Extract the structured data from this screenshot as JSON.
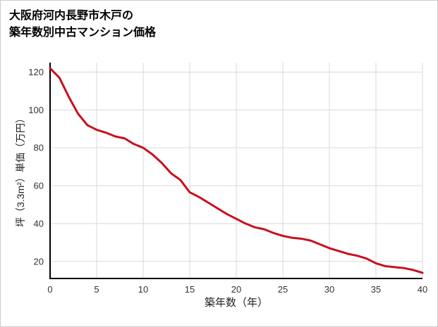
{
  "page": {
    "background": "#ffffff",
    "border_color": "#cccccc"
  },
  "chart_data": {
    "type": "line",
    "title": "大阪府河内長野市木戸の築年数別中古マンション価格",
    "title_lines": [
      "大阪府河内長野市木戸の",
      "築年数別中古マンション価格"
    ],
    "xlabel": "築年数（年）",
    "ylabel": "坪（3.3m²）単価（万円）",
    "x": [
      0,
      1,
      2,
      3,
      4,
      5,
      6,
      7,
      8,
      9,
      10,
      11,
      12,
      13,
      14,
      15,
      16,
      17,
      18,
      19,
      20,
      21,
      22,
      23,
      24,
      25,
      26,
      27,
      28,
      29,
      30,
      31,
      32,
      33,
      34,
      35,
      36,
      37,
      38,
      39,
      40
    ],
    "y": [
      122,
      117,
      107,
      98,
      92,
      89.5,
      88,
      86,
      85,
      82,
      80,
      76.5,
      72,
      66.5,
      63,
      56.5,
      54,
      51,
      48,
      45,
      42.5,
      40,
      38,
      37,
      35,
      33.5,
      32.5,
      32,
      31,
      29,
      27,
      25.5,
      24,
      23,
      21.5,
      19,
      17.5,
      17,
      16.5,
      15.5,
      14
    ],
    "xlim": [
      0,
      40
    ],
    "ylim": [
      11,
      125
    ],
    "xticks": [
      0,
      5,
      10,
      15,
      20,
      25,
      30,
      35,
      40
    ],
    "yticks": [
      20,
      40,
      60,
      80,
      100,
      120
    ],
    "grid": true,
    "legend_position": "none",
    "line_color": "#c9101e",
    "grid_color": "#d9d9d9",
    "axis_color": "#000000",
    "tick_color": "#333333"
  }
}
